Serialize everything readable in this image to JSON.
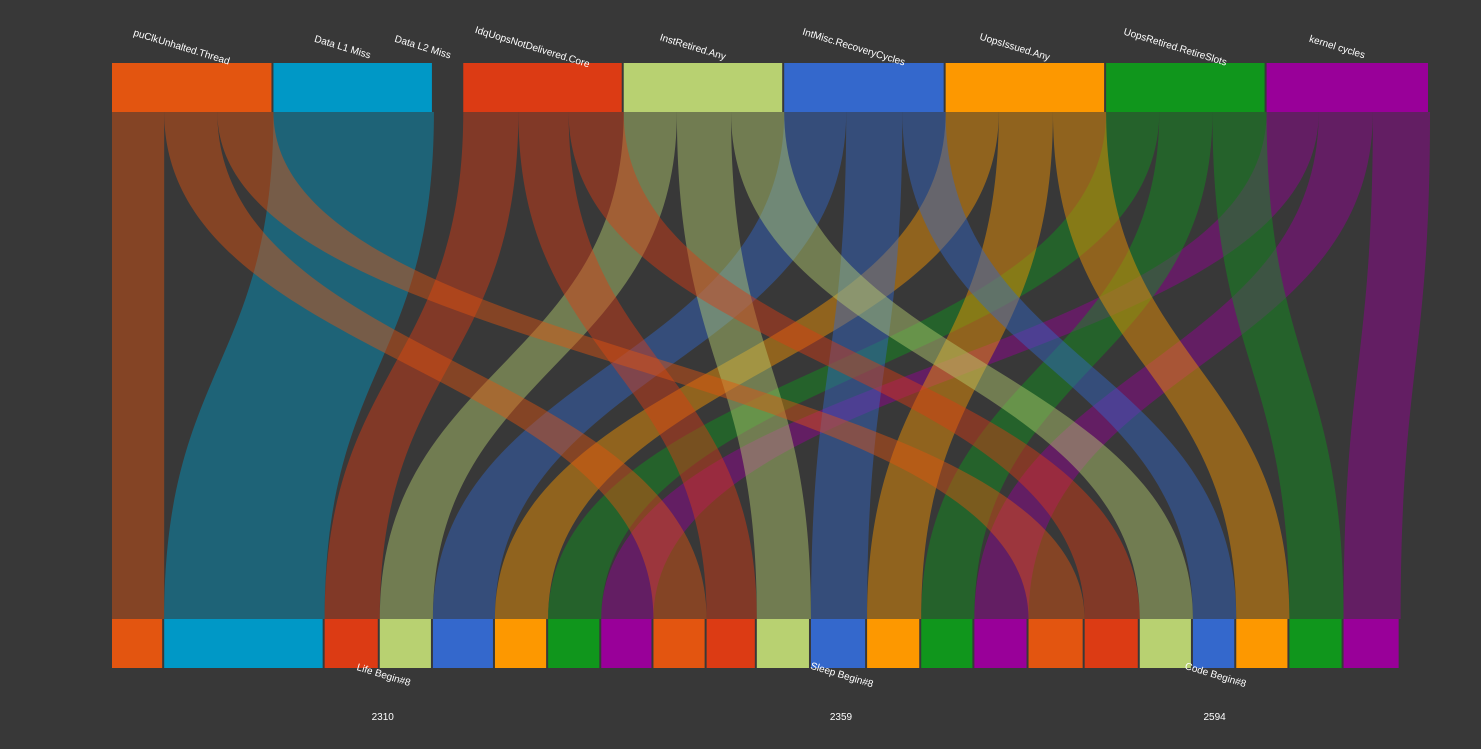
{
  "chart_data": {
    "type": "sankey",
    "title": "",
    "background": "#383838",
    "metrics": [
      {
        "name": "CpuClkUnhalted.Thread",
        "label": "puClkUnhalted.Thread",
        "color": "#e35510"
      },
      {
        "name": "Data L1 Miss",
        "label": "Data L1 Miss",
        "color": "#0098c6"
      },
      {
        "name": "Data L2 Miss",
        "label": "Data L2 Miss",
        "color": "#0098c6"
      },
      {
        "name": "IdqUopsNotDelivered.Core",
        "label": "IdqUopsNotDelivered.Core",
        "color": "#dc3b14"
      },
      {
        "name": "InstRetired.Any",
        "label": "InstRetired.Any",
        "color": "#b8d171"
      },
      {
        "name": "IntMisc.RecoveryCycles",
        "label": "IntMisc.RecoveryCycles",
        "color": "#3468cc"
      },
      {
        "name": "UopsIssued.Any",
        "label": "UopsIssued.Any",
        "color": "#fd9800"
      },
      {
        "name": "UopsRetired.RetireSlots",
        "label": "UopsRetired.RetireSlots",
        "color": "#10961c"
      },
      {
        "name": "kernel cycles",
        "label": "kernel cycles",
        "color": "#990099"
      }
    ],
    "groups": [
      {
        "name": "Life Begin#8",
        "total": "2310"
      },
      {
        "name": "Sleep Begin#8",
        "total": "2359"
      },
      {
        "name": "Code Begin#8",
        "total": "2594"
      }
    ],
    "flows": [
      {
        "source": "CpuClkUnhalted.Thread",
        "target": "Life Begin#8",
        "value": 53
      },
      {
        "source": "Data L1 Miss",
        "target": "Life Begin#8",
        "value": 163
      },
      {
        "source": "IdqUopsNotDelivered.Core",
        "target": "Life Begin#8",
        "value": 56
      },
      {
        "source": "InstRetired.Any",
        "target": "Life Begin#8",
        "value": 54
      },
      {
        "source": "IntMisc.RecoveryCycles",
        "target": "Life Begin#8",
        "value": 63
      },
      {
        "source": "UopsIssued.Any",
        "target": "Life Begin#8",
        "value": 54
      },
      {
        "source": "UopsRetired.RetireSlots",
        "target": "Life Begin#8",
        "value": 54
      },
      {
        "source": "kernel cycles",
        "target": "Life Begin#8",
        "value": 53
      },
      {
        "source": "CpuClkUnhalted.Thread",
        "target": "Sleep Begin#8",
        "value": 54
      },
      {
        "source": "IdqUopsNotDelivered.Core",
        "target": "Sleep Begin#8",
        "value": 51
      },
      {
        "source": "InstRetired.Any",
        "target": "Sleep Begin#8",
        "value": 55
      },
      {
        "source": "IntMisc.RecoveryCycles",
        "target": "Sleep Begin#8",
        "value": 57
      },
      {
        "source": "UopsIssued.Any",
        "target": "Sleep Begin#8",
        "value": 55
      },
      {
        "source": "UopsRetired.RetireSlots",
        "target": "Sleep Begin#8",
        "value": 54
      },
      {
        "source": "kernel cycles",
        "target": "Sleep Begin#8",
        "value": 55
      },
      {
        "source": "CpuClkUnhalted.Thread",
        "target": "Code Begin#8",
        "value": 57
      },
      {
        "source": "IdqUopsNotDelivered.Core",
        "target": "Code Begin#8",
        "value": 56
      },
      {
        "source": "InstRetired.Any",
        "target": "Code Begin#8",
        "value": 54
      },
      {
        "source": "IntMisc.RecoveryCycles",
        "target": "Code Begin#8",
        "value": 44
      },
      {
        "source": "UopsIssued.Any",
        "target": "Code Begin#8",
        "value": 54
      },
      {
        "source": "UopsRetired.RetireSlots",
        "target": "Code Begin#8",
        "value": 55
      },
      {
        "source": "kernel cycles",
        "target": "Code Begin#8",
        "value": 58
      }
    ]
  }
}
